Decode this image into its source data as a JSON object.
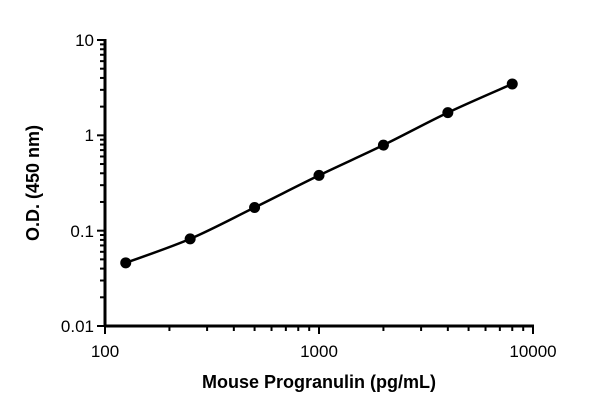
{
  "chart_data": {
    "type": "line",
    "title": "",
    "xlabel": "Mouse Progranulin (pg/mL)",
    "ylabel": "O.D. (450 nm)",
    "xscale": "log",
    "yscale": "log",
    "xlim": [
      100,
      10000
    ],
    "ylim": [
      0.01,
      10
    ],
    "xticks": [
      "100",
      "1000",
      "10000"
    ],
    "yticks": [
      "0.01",
      "0.1",
      "1",
      "10"
    ],
    "grid": false,
    "legend": "none",
    "series": [
      {
        "x": [
          125,
          250,
          500,
          1000,
          2000,
          4000,
          8000
        ],
        "y": [
          0.046,
          0.082,
          0.175,
          0.38,
          0.79,
          1.73,
          3.46
        ],
        "marker": "circle",
        "color": "#000000",
        "fit_curve": true
      }
    ]
  }
}
